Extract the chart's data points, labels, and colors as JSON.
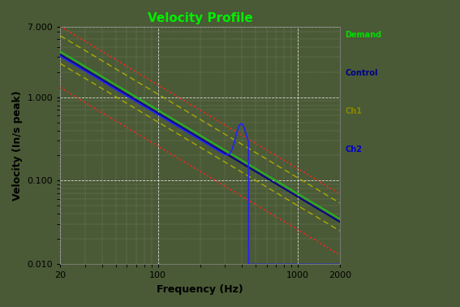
{
  "title": "Velocity Profile",
  "xlabel": "Frequency (Hz)",
  "ylabel": "Velocity (In/s peak)",
  "bg_color": "#4a5a36",
  "title_color": "#00ee00",
  "grid_color": "#cccccc",
  "xlim": [
    20,
    2000
  ],
  "ylim": [
    0.01,
    7.0
  ],
  "resonant_freq": 420,
  "legend_labels": [
    "Demand",
    "Control",
    "Ch1",
    "Ch2"
  ],
  "legend_colors": [
    "#00dd00",
    "#000088",
    "#888800",
    "#0000cc"
  ],
  "demand_val_at20": 3.5,
  "demand_slope": 1.0,
  "red_upper_factor": 2.0,
  "red_lower_factor": 0.37,
  "ch1_upper_factor": 1.55,
  "ch1_lower_factor": 0.72,
  "control_factor": 0.92,
  "ch2_factor": 0.88,
  "ch2_post_factor": 0.055,
  "ch2_peak_val": 0.55,
  "ch2_dip_val": 0.0101
}
